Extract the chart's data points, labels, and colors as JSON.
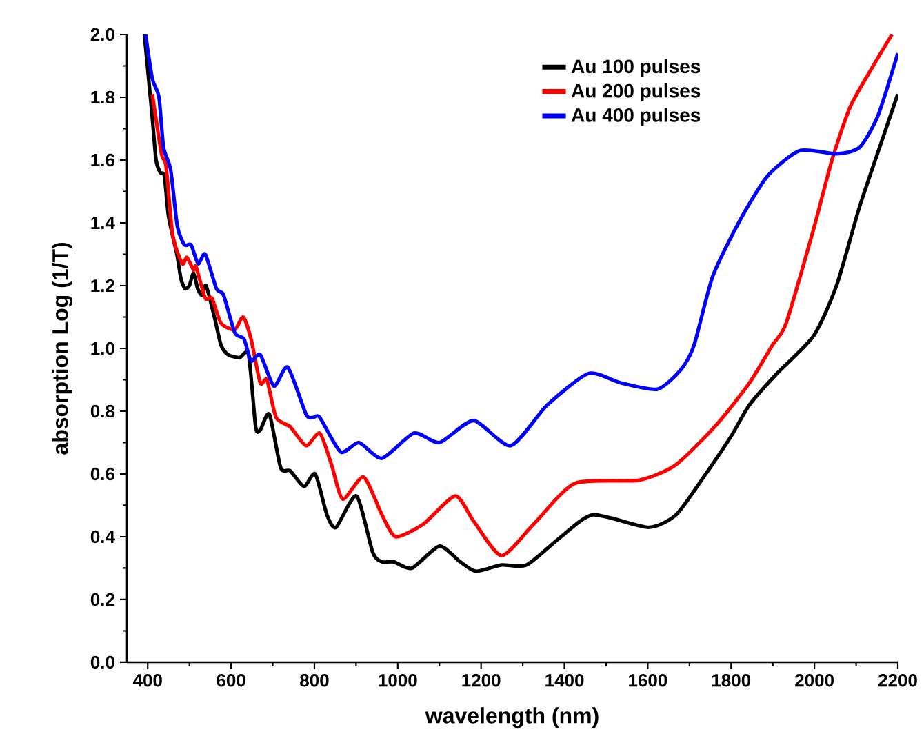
{
  "chart_data": {
    "type": "line",
    "xlabel": "wavelength (nm)",
    "ylabel": "absorption Log (1/T)",
    "xlim": [
      350,
      2200
    ],
    "ylim": [
      0,
      2
    ],
    "xticks": [
      400,
      600,
      800,
      1000,
      1200,
      1400,
      1600,
      1800,
      2000,
      2200
    ],
    "yticks": [
      {
        "value": 0,
        "label": "0.0"
      },
      0.2,
      0.4,
      0.6,
      0.8,
      {
        "value": 1,
        "label": "1.0"
      },
      1.2,
      1.4,
      1.6,
      1.8,
      {
        "value": 2,
        "label": "2.0"
      }
    ],
    "grid": false,
    "legend": "top right",
    "marker": "none",
    "line_style": "solid",
    "series": [
      {
        "name": "Au 100 pulses",
        "color": "#000000",
        "x": [
          392,
          410,
          420,
          430,
          440,
          450,
          470,
          480,
          490,
          500,
          510,
          520,
          530,
          540,
          560,
          576,
          593,
          620,
          642,
          659,
          670,
          692,
          719,
          742,
          775,
          802,
          830,
          852,
          901,
          940,
          962,
          990,
          1034,
          1100,
          1150,
          1188,
          1249,
          1309,
          1392,
          1469,
          1601,
          1668,
          1734,
          1800,
          1844,
          1910,
          1998,
          2053,
          2108,
          2164,
          2200
        ],
        "values": [
          2.0,
          1.75,
          1.6,
          1.56,
          1.55,
          1.42,
          1.3,
          1.22,
          1.19,
          1.2,
          1.24,
          1.19,
          1.17,
          1.2,
          1.1,
          1.01,
          0.98,
          0.97,
          0.98,
          0.75,
          0.74,
          0.79,
          0.62,
          0.61,
          0.56,
          0.6,
          0.47,
          0.43,
          0.53,
          0.35,
          0.32,
          0.32,
          0.3,
          0.37,
          0.32,
          0.29,
          0.31,
          0.31,
          0.4,
          0.47,
          0.43,
          0.47,
          0.59,
          0.72,
          0.82,
          0.92,
          1.04,
          1.2,
          1.45,
          1.67,
          1.81
        ]
      },
      {
        "name": "Au 200 pulses",
        "color": "#ff0000",
        "x": [
          411,
          433,
          444,
          460,
          483,
          494,
          510,
          516,
          538,
          554,
          576,
          609,
          629,
          648,
          670,
          686,
          708,
          742,
          780,
          813,
          841,
          868,
          918,
          962,
          995,
          1061,
          1138,
          1182,
          1249,
          1326,
          1425,
          1579,
          1668,
          1767,
          1844,
          1899,
          1932,
          1998,
          2042,
          2086,
          2141,
          2186
        ],
        "values": [
          1.81,
          1.62,
          1.58,
          1.36,
          1.27,
          1.29,
          1.25,
          1.26,
          1.16,
          1.16,
          1.08,
          1.06,
          1.1,
          1.03,
          0.89,
          0.9,
          0.78,
          0.75,
          0.69,
          0.73,
          0.63,
          0.52,
          0.59,
          0.47,
          0.4,
          0.44,
          0.53,
          0.45,
          0.34,
          0.44,
          0.57,
          0.58,
          0.63,
          0.76,
          0.89,
          1.01,
          1.08,
          1.38,
          1.6,
          1.77,
          1.9,
          2.0
        ]
      },
      {
        "name": "Au 400 pulses",
        "color": "#0000ff",
        "x": [
          395,
          411,
          427,
          438,
          455,
          471,
          488,
          504,
          521,
          538,
          565,
          582,
          609,
          631,
          648,
          670,
          703,
          736,
          780,
          797,
          813,
          863,
          907,
          962,
          1039,
          1100,
          1182,
          1271,
          1359,
          1458,
          1535,
          1623,
          1678,
          1711,
          1756,
          1822,
          1888,
          1965,
          2053,
          2108,
          2152,
          2200
        ],
        "values": [
          2.0,
          1.86,
          1.8,
          1.64,
          1.57,
          1.39,
          1.33,
          1.33,
          1.27,
          1.3,
          1.19,
          1.17,
          1.05,
          1.03,
          0.96,
          0.98,
          0.88,
          0.94,
          0.79,
          0.78,
          0.78,
          0.67,
          0.7,
          0.65,
          0.73,
          0.7,
          0.77,
          0.69,
          0.82,
          0.92,
          0.89,
          0.87,
          0.93,
          1.01,
          1.23,
          1.41,
          1.55,
          1.63,
          1.62,
          1.64,
          1.74,
          1.94
        ]
      }
    ]
  }
}
